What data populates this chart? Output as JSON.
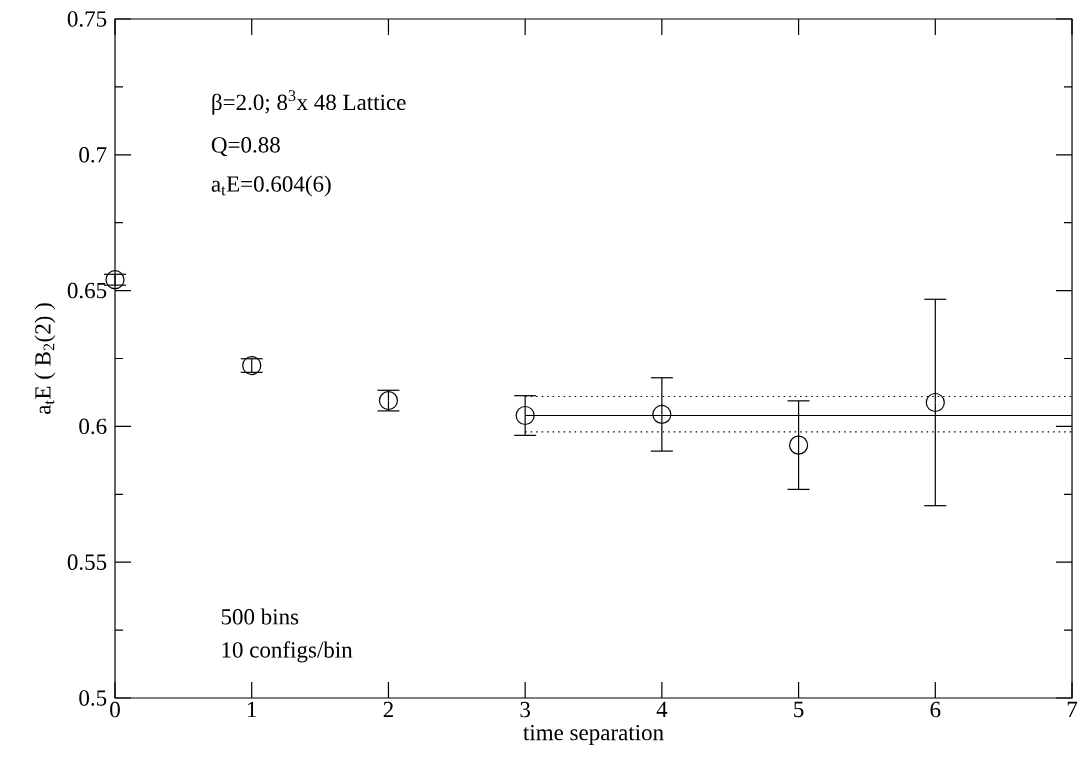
{
  "chart_data": {
    "type": "scatter",
    "xlabel": "time separation",
    "ylabel": "a$_{t}$E ( B$_{2}$(2) )",
    "xlim": [
      0,
      7
    ],
    "ylim": [
      0.5,
      0.75
    ],
    "xticks": [
      0,
      1,
      2,
      3,
      4,
      5,
      6,
      7
    ],
    "yticks": [
      0.5,
      0.55,
      0.6,
      0.65,
      0.7,
      0.75
    ],
    "annotations": [
      "β=2.0;  8$^{3}$x 48 Lattice",
      "Q=0.88",
      "a$_{t}$E=0.604(6)",
      "500 bins",
      "10 configs/bin"
    ],
    "marker": "circle",
    "grid": false,
    "series": [
      {
        "color": "#000000",
        "x": [
          0,
          1,
          2,
          3,
          4,
          5,
          6
        ],
        "values": [
          0.654,
          0.6224,
          0.6095,
          0.604,
          0.6044,
          0.5931,
          0.6088
        ],
        "errors": [
          0.002,
          0.0025,
          0.0038,
          0.0073,
          0.0135,
          0.0163,
          0.038
        ]
      },
      {
        "type": "line",
        "color": "#000000",
        "line_style": "solid",
        "marker": "none",
        "x": [
          3,
          7
        ],
        "values": [
          0.604,
          0.604
        ]
      },
      {
        "type": "line",
        "color": "#000000",
        "line_style": "dotted",
        "marker": "none",
        "x": [
          3,
          7
        ],
        "values": [
          0.611,
          0.611
        ]
      },
      {
        "type": "line",
        "color": "#000000",
        "line_style": "dotted",
        "marker": "none",
        "x": [
          3,
          7
        ],
        "values": [
          0.598,
          0.598
        ]
      }
    ]
  }
}
